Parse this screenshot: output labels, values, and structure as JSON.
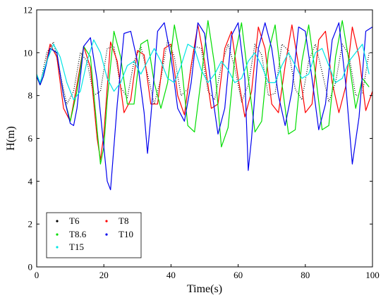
{
  "chart_data": {
    "type": "line",
    "title": "",
    "xlabel": "Time(s)",
    "ylabel": "H(m)",
    "xlim": [
      0,
      100
    ],
    "ylim": [
      0,
      12
    ],
    "x_ticks": [
      0,
      20,
      40,
      60,
      80,
      100
    ],
    "y_ticks": [
      0,
      2,
      4,
      6,
      8,
      10,
      12
    ],
    "x_tick_labels": [
      "0",
      "20",
      "40",
      "60",
      "80",
      "100"
    ],
    "y_tick_labels": [
      "0",
      "2",
      "4",
      "6",
      "8",
      "10",
      "12"
    ],
    "grid": false,
    "legend_position": "bottom-left",
    "series": [
      {
        "name": "T6",
        "color": "#000000",
        "x": [
          0,
          1,
          3,
          5,
          7,
          9,
          11,
          13,
          15,
          17,
          19,
          21,
          23,
          25,
          27,
          29,
          31,
          33,
          35,
          37,
          39,
          41,
          43,
          45,
          47,
          49,
          51,
          53,
          55,
          57,
          59,
          61,
          63,
          65,
          67,
          69,
          71,
          73,
          75,
          77,
          79,
          81,
          83,
          85,
          87,
          89,
          91,
          93,
          95,
          97,
          99
        ],
        "y": [
          8.9,
          8.5,
          10.0,
          10.5,
          9.0,
          7.6,
          8.2,
          10.0,
          9.6,
          8.0,
          8.2,
          10.2,
          10.3,
          8.4,
          7.9,
          9.6,
          10.3,
          9.0,
          7.6,
          8.8,
          10.6,
          9.8,
          8.0,
          8.3,
          10.3,
          10.2,
          8.2,
          7.8,
          9.4,
          10.4,
          9.3,
          7.7,
          8.5,
          10.4,
          9.9,
          8.0,
          8.1,
          10.4,
          10.1,
          8.3,
          7.8,
          9.6,
          10.4,
          9.1,
          7.7,
          8.6,
          10.4,
          9.9,
          8.0,
          8.1,
          10.0
        ]
      },
      {
        "name": "T8",
        "color": "#ff0000",
        "x": [
          0,
          1,
          2,
          4,
          6,
          8,
          10,
          12,
          14,
          16,
          18,
          19,
          20,
          22,
          24,
          26,
          28,
          30,
          32,
          34,
          36,
          38,
          40,
          42,
          44,
          46,
          48,
          50,
          52,
          54,
          56,
          58,
          60,
          62,
          64,
          66,
          68,
          70,
          72,
          74,
          76,
          78,
          80,
          82,
          84,
          86,
          88,
          90,
          92,
          94,
          96,
          98,
          100
        ],
        "y": [
          8.9,
          8.5,
          8.9,
          10.4,
          9.8,
          7.4,
          6.8,
          8.5,
          10.3,
          9.3,
          6.0,
          5.0,
          6.2,
          10.5,
          9.6,
          7.2,
          7.8,
          10.1,
          9.9,
          7.6,
          7.6,
          10.2,
          10.4,
          8.0,
          7.1,
          9.4,
          11.3,
          9.6,
          7.4,
          7.6,
          10.2,
          11.0,
          8.8,
          7.0,
          8.2,
          11.2,
          10.2,
          7.6,
          7.2,
          9.4,
          11.3,
          9.4,
          7.2,
          7.6,
          10.6,
          11.0,
          8.6,
          7.2,
          8.4,
          11.2,
          9.8,
          7.3,
          8.2
        ]
      },
      {
        "name": "T8.6",
        "color": "#00dd00",
        "x": [
          0,
          1,
          2,
          4,
          6,
          8,
          10,
          12,
          14,
          16,
          18,
          19,
          20,
          21,
          23,
          25,
          27,
          29,
          31,
          33,
          35,
          37,
          39,
          41,
          43,
          45,
          47,
          49,
          51,
          53,
          55,
          57,
          59,
          61,
          63,
          65,
          67,
          69,
          71,
          73,
          75,
          77,
          79,
          81,
          83,
          85,
          87,
          89,
          91,
          93,
          95,
          97,
          99
        ],
        "y": [
          8.9,
          8.5,
          8.9,
          10.2,
          10.0,
          8.0,
          6.8,
          8.2,
          10.3,
          9.8,
          6.4,
          4.8,
          5.6,
          7.8,
          11.0,
          9.8,
          7.6,
          7.6,
          10.4,
          10.6,
          8.6,
          7.4,
          8.6,
          11.3,
          9.6,
          6.6,
          6.3,
          8.8,
          11.5,
          9.4,
          5.6,
          6.5,
          9.8,
          11.4,
          8.8,
          6.3,
          6.8,
          10.0,
          11.3,
          8.6,
          6.2,
          6.4,
          9.6,
          11.3,
          9.0,
          6.4,
          6.6,
          9.8,
          11.5,
          9.6,
          7.4,
          8.8,
          8.4
        ]
      },
      {
        "name": "T10",
        "color": "#0000ee",
        "x": [
          0,
          1,
          2,
          4,
          6,
          8,
          10,
          11,
          12,
          14,
          16,
          18,
          20,
          21,
          22,
          24,
          26,
          28,
          30,
          32,
          33,
          34,
          36,
          38,
          40,
          42,
          44,
          46,
          48,
          50,
          52,
          54,
          56,
          58,
          60,
          62,
          63,
          64,
          66,
          68,
          70,
          72,
          74,
          76,
          78,
          80,
          82,
          84,
          86,
          88,
          90,
          92,
          94,
          96,
          98,
          100
        ],
        "y": [
          8.9,
          8.5,
          8.9,
          10.2,
          10.0,
          8.0,
          6.7,
          6.6,
          7.4,
          10.3,
          10.7,
          8.7,
          5.6,
          4.0,
          3.6,
          7.6,
          10.9,
          11.0,
          9.6,
          7.2,
          5.3,
          7.0,
          11.0,
          11.4,
          9.8,
          7.4,
          6.8,
          8.6,
          11.4,
          10.9,
          8.4,
          6.2,
          7.4,
          10.8,
          11.4,
          8.8,
          4.5,
          6.0,
          10.2,
          11.4,
          10.2,
          8.0,
          6.6,
          8.2,
          11.2,
          11.0,
          8.8,
          6.4,
          7.6,
          10.6,
          11.4,
          8.6,
          4.8,
          7.0,
          11.0,
          11.2
        ]
      },
      {
        "name": "T15",
        "color": "#00e5e5",
        "x": [
          0,
          1,
          3,
          5,
          7,
          9,
          11,
          13,
          15,
          17,
          19,
          21,
          23,
          25,
          27,
          29,
          31,
          33,
          35,
          37,
          39,
          41,
          43,
          45,
          47,
          49,
          51,
          53,
          55,
          57,
          59,
          61,
          63,
          65,
          67,
          69,
          71,
          73,
          75,
          77,
          79,
          81,
          83,
          85,
          87,
          89,
          91,
          93,
          95,
          97,
          99
        ],
        "y": [
          9.0,
          8.6,
          9.6,
          10.4,
          9.8,
          8.6,
          7.8,
          8.2,
          9.6,
          10.6,
          10.0,
          8.8,
          8.2,
          8.6,
          9.4,
          9.6,
          9.0,
          9.6,
          10.2,
          9.6,
          8.8,
          8.6,
          9.4,
          10.4,
          10.2,
          9.2,
          8.6,
          9.0,
          9.6,
          9.2,
          8.6,
          8.8,
          9.6,
          10.0,
          9.4,
          8.6,
          8.6,
          9.4,
          10.0,
          9.4,
          8.8,
          9.0,
          10.0,
          10.2,
          9.4,
          8.6,
          8.8,
          9.6,
          10.0,
          10.4,
          9.0
        ]
      }
    ]
  }
}
